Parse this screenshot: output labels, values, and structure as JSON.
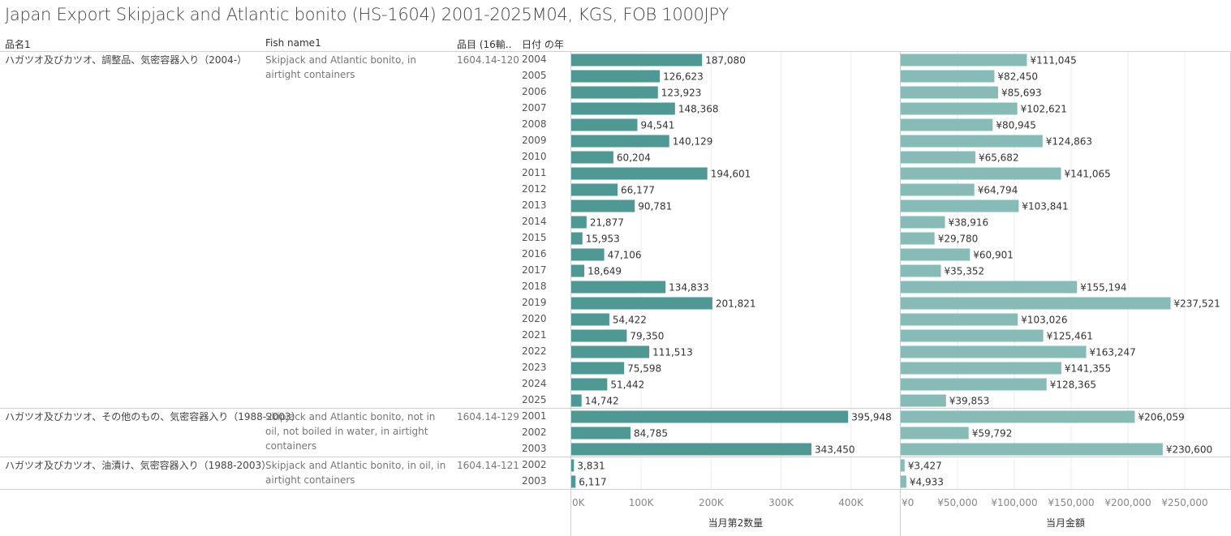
{
  "title": "Japan Export Skipjack and Atlantic bonito (HS-1604) 2001-2025M04, KGS, FOB 1000JPY",
  "headers": {
    "name1": "品名1",
    "fish": "Fish name1",
    "code": "品目 (16輸..",
    "year": "日付 の年"
  },
  "colors": {
    "qty_bar": "#4e9993",
    "value_bar": "#86bcb5",
    "gridline": "#eeeeee",
    "divider": "#cfcfcf"
  },
  "groups": [
    {
      "name1": "ハガツオ及びカツオ、調整品、気密容器入り（2004-）",
      "fish": "Skipjack and Atlantic bonito, in airtight containers",
      "code": "1604.14-120"
    },
    {
      "name1": "ハガツオ及びカツオ、その他のもの、気密容器入り（1988-2003）",
      "fish": "Skipjack and Atlantic bonito, not in oil, not boiled in water, in airtight containers",
      "code": "1604.14-129"
    },
    {
      "name1": "ハガツオ及びカツオ、油漬け、気密容器入り（1988-2003）",
      "fish": "Skipjack and Atlantic bonito, in oil, in airtight containers",
      "code": "1604.14-121"
    }
  ],
  "chart_data": {
    "type": "bar",
    "orientation": "horizontal",
    "grid": true,
    "panels": [
      {
        "axis_title": "当月第2数量",
        "xlim": [
          0,
          470000
        ],
        "ticks": [
          0,
          100000,
          200000,
          300000,
          400000
        ],
        "tick_labels": [
          "0K",
          "100K",
          "200K",
          "300K",
          "400K"
        ],
        "prefix": ""
      },
      {
        "axis_title": "当月金額",
        "xlim": [
          0,
          290000
        ],
        "ticks": [
          0,
          50000,
          100000,
          150000,
          200000,
          250000
        ],
        "tick_labels": [
          "¥0",
          "¥50,000",
          "¥100,000",
          "¥150,000",
          "¥200,000",
          "¥250,000"
        ],
        "prefix": "¥"
      }
    ],
    "rows": [
      {
        "group": 0,
        "year": "2004",
        "qty": 187080,
        "value": 111045
      },
      {
        "group": 0,
        "year": "2005",
        "qty": 126623,
        "value": 82450
      },
      {
        "group": 0,
        "year": "2006",
        "qty": 123923,
        "value": 85693
      },
      {
        "group": 0,
        "year": "2007",
        "qty": 148368,
        "value": 102621
      },
      {
        "group": 0,
        "year": "2008",
        "qty": 94541,
        "value": 80945
      },
      {
        "group": 0,
        "year": "2009",
        "qty": 140129,
        "value": 124863
      },
      {
        "group": 0,
        "year": "2010",
        "qty": 60204,
        "value": 65682
      },
      {
        "group": 0,
        "year": "2011",
        "qty": 194601,
        "value": 141065
      },
      {
        "group": 0,
        "year": "2012",
        "qty": 66177,
        "value": 64794
      },
      {
        "group": 0,
        "year": "2013",
        "qty": 90781,
        "value": 103841
      },
      {
        "group": 0,
        "year": "2014",
        "qty": 21877,
        "value": 38916
      },
      {
        "group": 0,
        "year": "2015",
        "qty": 15953,
        "value": 29780
      },
      {
        "group": 0,
        "year": "2016",
        "qty": 47106,
        "value": 60901
      },
      {
        "group": 0,
        "year": "2017",
        "qty": 18649,
        "value": 35352
      },
      {
        "group": 0,
        "year": "2018",
        "qty": 134833,
        "value": 155194
      },
      {
        "group": 0,
        "year": "2019",
        "qty": 201821,
        "value": 237521
      },
      {
        "group": 0,
        "year": "2020",
        "qty": 54422,
        "value": 103026
      },
      {
        "group": 0,
        "year": "2021",
        "qty": 79350,
        "value": 125461
      },
      {
        "group": 0,
        "year": "2022",
        "qty": 111513,
        "value": 163247
      },
      {
        "group": 0,
        "year": "2023",
        "qty": 75598,
        "value": 141355
      },
      {
        "group": 0,
        "year": "2024",
        "qty": 51442,
        "value": 128365
      },
      {
        "group": 0,
        "year": "2025",
        "qty": 14742,
        "value": 39853
      },
      {
        "group": 1,
        "year": "2001",
        "qty": 395948,
        "value": 206059
      },
      {
        "group": 1,
        "year": "2002",
        "qty": 84785,
        "value": 59792
      },
      {
        "group": 1,
        "year": "2003",
        "qty": 343450,
        "value": 230600
      },
      {
        "group": 2,
        "year": "2002",
        "qty": 3831,
        "value": 3427
      },
      {
        "group": 2,
        "year": "2003",
        "qty": 6117,
        "value": 4933
      }
    ]
  }
}
